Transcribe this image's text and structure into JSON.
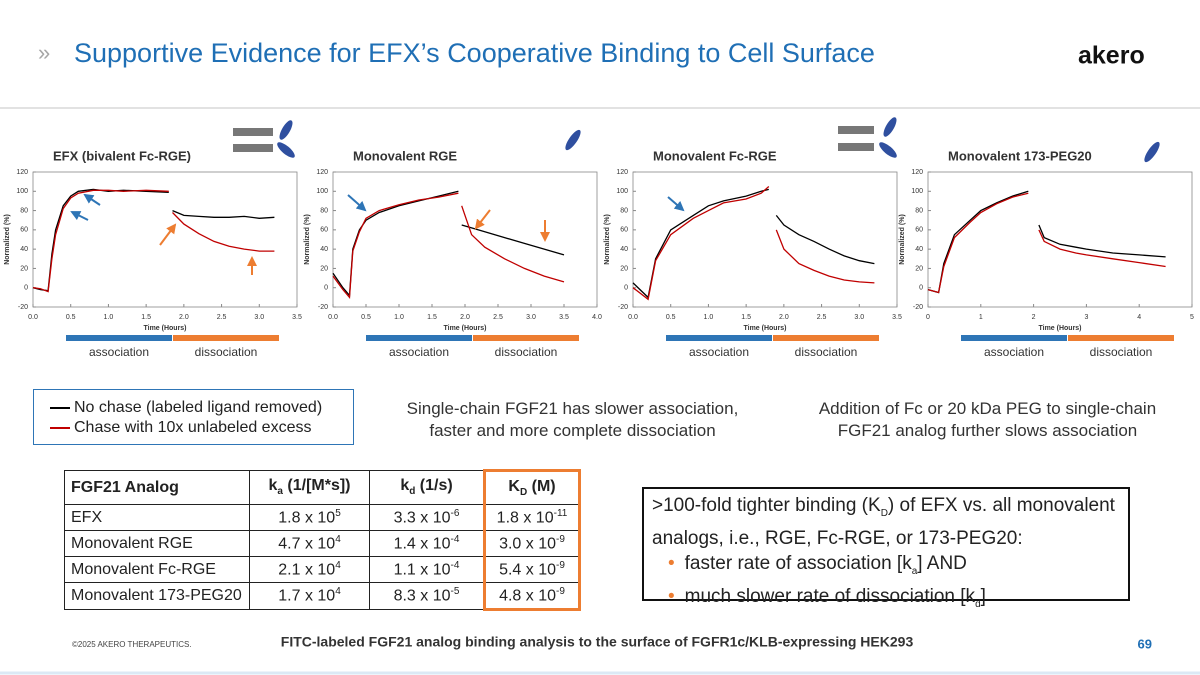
{
  "header": {
    "marker": "»",
    "title": "Supportive Evidence for EFX’s Cooperative Binding to Cell Surface",
    "logo": "akero"
  },
  "chart_data": [
    {
      "type": "line",
      "title": "EFX (bivalent Fc-RGE)",
      "xlabel": "Time (Hours)",
      "ylabel": "Normalized (%)",
      "x": [
        0,
        0.1,
        0.2,
        0.25,
        0.3,
        0.4,
        0.5,
        0.6,
        0.8,
        1.0,
        1.2,
        1.5,
        1.8,
        1.82,
        1.85,
        2.0,
        2.2,
        2.4,
        2.6,
        2.8,
        3.0,
        3.2
      ],
      "series": [
        {
          "name": "No chase (labeled ligand removed)",
          "color": "#000000",
          "values": [
            0,
            -2,
            -3,
            35,
            60,
            85,
            95,
            100,
            102,
            100,
            101,
            100,
            99,
            null,
            80,
            75,
            74,
            73,
            73,
            74,
            72,
            73
          ]
        },
        {
          "name": "Chase with 10x unlabeled excess",
          "color": "#c00000",
          "values": [
            0,
            -1,
            -4,
            30,
            55,
            82,
            93,
            98,
            101,
            101,
            100,
            101,
            100,
            null,
            78,
            66,
            56,
            48,
            43,
            40,
            38,
            38
          ]
        }
      ],
      "xlim": [
        0,
        3.5
      ],
      "xticks": [
        {
          "value": 0,
          "label": "0.0"
        },
        0.5,
        {
          "value": 1,
          "label": "1.0"
        },
        1.5,
        {
          "value": 2,
          "label": "2.0"
        },
        2.5,
        {
          "value": 3,
          "label": "3.0"
        },
        3.5
      ],
      "ylim": [
        -20,
        120
      ],
      "yticks": [
        -20,
        0,
        20,
        40,
        60,
        80,
        100,
        120
      ],
      "phases": [
        "association",
        "dissociation"
      ]
    },
    {
      "type": "line",
      "title": "Monovalent RGE",
      "xlabel": "Time (Hours)",
      "ylabel": "Normalized (%)",
      "x": [
        0,
        0.15,
        0.25,
        0.3,
        0.4,
        0.5,
        0.7,
        1.0,
        1.3,
        1.6,
        1.9,
        1.93,
        1.95,
        2.1,
        2.3,
        2.6,
        2.9,
        3.2,
        3.5
      ],
      "series": [
        {
          "color": "#000000",
          "values": [
            15,
            0,
            -8,
            40,
            60,
            70,
            78,
            85,
            90,
            95,
            100,
            null,
            65,
            62,
            58,
            52,
            46,
            40,
            34
          ]
        },
        {
          "color": "#c00000",
          "values": [
            12,
            -2,
            -10,
            38,
            58,
            72,
            80,
            86,
            91,
            94,
            98,
            null,
            85,
            55,
            42,
            30,
            20,
            12,
            6
          ]
        }
      ],
      "xlim": [
        0,
        4
      ],
      "xticks": [
        {
          "value": 0,
          "label": "0.0"
        },
        0.5,
        {
          "value": 1,
          "label": "1.0"
        },
        1.5,
        {
          "value": 2,
          "label": "2.0"
        },
        2.5,
        {
          "value": 3,
          "label": "3.0"
        },
        3.5,
        {
          "value": 4,
          "label": "4.0"
        }
      ],
      "ylim": [
        -20,
        120
      ],
      "yticks": [
        -20,
        0,
        20,
        40,
        60,
        80,
        100,
        120
      ],
      "phases": [
        "association",
        "dissociation"
      ]
    },
    {
      "type": "line",
      "title": "Monovalent Fc-RGE",
      "xlabel": "Time (Hours)",
      "ylabel": "Normalized (%)",
      "x": [
        0,
        0.2,
        0.3,
        0.5,
        0.8,
        1.0,
        1.2,
        1.5,
        1.7,
        1.8,
        1.82,
        1.9,
        2.0,
        2.2,
        2.4,
        2.6,
        2.8,
        3.0,
        3.2
      ],
      "series": [
        {
          "color": "#000000",
          "values": [
            5,
            -10,
            30,
            60,
            75,
            85,
            90,
            95,
            100,
            102,
            null,
            75,
            65,
            55,
            48,
            40,
            33,
            28,
            25
          ]
        },
        {
          "color": "#c00000",
          "values": [
            0,
            -12,
            28,
            55,
            72,
            80,
            88,
            92,
            98,
            105,
            null,
            60,
            40,
            25,
            18,
            12,
            8,
            6,
            5
          ]
        }
      ],
      "xlim": [
        0,
        3.5
      ],
      "xticks": [
        {
          "value": 0,
          "label": "0.0"
        },
        0.5,
        {
          "value": 1,
          "label": "1.0"
        },
        1.5,
        {
          "value": 2,
          "label": "2.0"
        },
        2.5,
        {
          "value": 3,
          "label": "3.0"
        },
        3.5
      ],
      "ylim": [
        -20,
        120
      ],
      "yticks": [
        -20,
        0,
        20,
        40,
        60,
        80,
        100,
        120
      ],
      "phases": [
        "association",
        "dissociation"
      ]
    },
    {
      "type": "line",
      "title": "Monovalent 173-PEG20",
      "xlabel": "Time (Hours)",
      "ylabel": "Normalized (%)",
      "x": [
        0,
        0.2,
        0.3,
        0.5,
        0.8,
        1.0,
        1.3,
        1.6,
        1.9,
        2.0,
        2.1,
        2.2,
        2.5,
        2.8,
        3.0,
        3.5,
        4.0,
        4.5
      ],
      "series": [
        {
          "color": "#000000",
          "values": [
            -2,
            -5,
            25,
            55,
            70,
            80,
            88,
            95,
            100,
            null,
            65,
            52,
            45,
            42,
            40,
            36,
            34,
            32
          ]
        },
        {
          "color": "#c00000",
          "values": [
            -2,
            -5,
            22,
            52,
            68,
            78,
            87,
            94,
            98,
            null,
            60,
            48,
            40,
            36,
            34,
            30,
            26,
            22
          ]
        }
      ],
      "xlim": [
        0,
        5
      ],
      "xticks": [
        0,
        1,
        2,
        3,
        4,
        5
      ],
      "ylim": [
        -20,
        120
      ],
      "yticks": [
        -20,
        0,
        20,
        40,
        60,
        80,
        100,
        120
      ],
      "phases": [
        "association",
        "dissociation"
      ]
    }
  ],
  "captions": [
    "Single-chain FGF21 has slower association, faster and more complete dissociation",
    "Addition of Fc or 20 kDa PEG to single-chain FGF21 analog further slows association"
  ],
  "table": {
    "header": [
      [
        "FGF21 Analog"
      ],
      [
        "k",
        "a",
        " (1/[M*s])"
      ],
      [
        "k",
        "d",
        " (1/s)"
      ],
      [
        "K",
        "D",
        " (M)"
      ]
    ],
    "rows": [
      [
        [
          "EFX"
        ],
        [
          "1.8 x 10",
          "5"
        ],
        [
          "3.3 x 10",
          "-6"
        ],
        [
          "1.8 x 10",
          "-11"
        ]
      ],
      [
        [
          "Monovalent RGE"
        ],
        [
          "4.7 x 10",
          "4"
        ],
        [
          "1.4 x 10",
          "-4"
        ],
        [
          "3.0 x 10",
          "-9"
        ]
      ],
      [
        [
          "Monovalent Fc-RGE"
        ],
        [
          "2.1 x 10",
          "4"
        ],
        [
          "1.1 x 10",
          "-4"
        ],
        [
          "5.4 x 10",
          "-9"
        ]
      ],
      [
        [
          "Monovalent 173-PEG20"
        ],
        [
          "1.7 x 10",
          "4"
        ],
        [
          "8.3 x 10",
          "-5"
        ],
        [
          "4.8 x 10",
          "-9"
        ]
      ]
    ]
  },
  "summary": {
    "lead": [
      ">100-fold tighter binding (K",
      "D",
      ") of EFX vs. all monovalent analogs, i.e., RGE, Fc-RGE, or 173-PEG20:"
    ],
    "bullets": [
      [
        "faster rate of association [k",
        "a",
        "] AND"
      ],
      [
        "much slower rate of dissociation [k",
        "d",
        "]"
      ]
    ]
  },
  "footer": {
    "copyright": "©2025 AKERO THERAPEUTICS.",
    "caption": "FITC-labeled FGF21 analog binding analysis to the surface of FGFR1c/KLB-expressing HEK293",
    "page": "69"
  }
}
